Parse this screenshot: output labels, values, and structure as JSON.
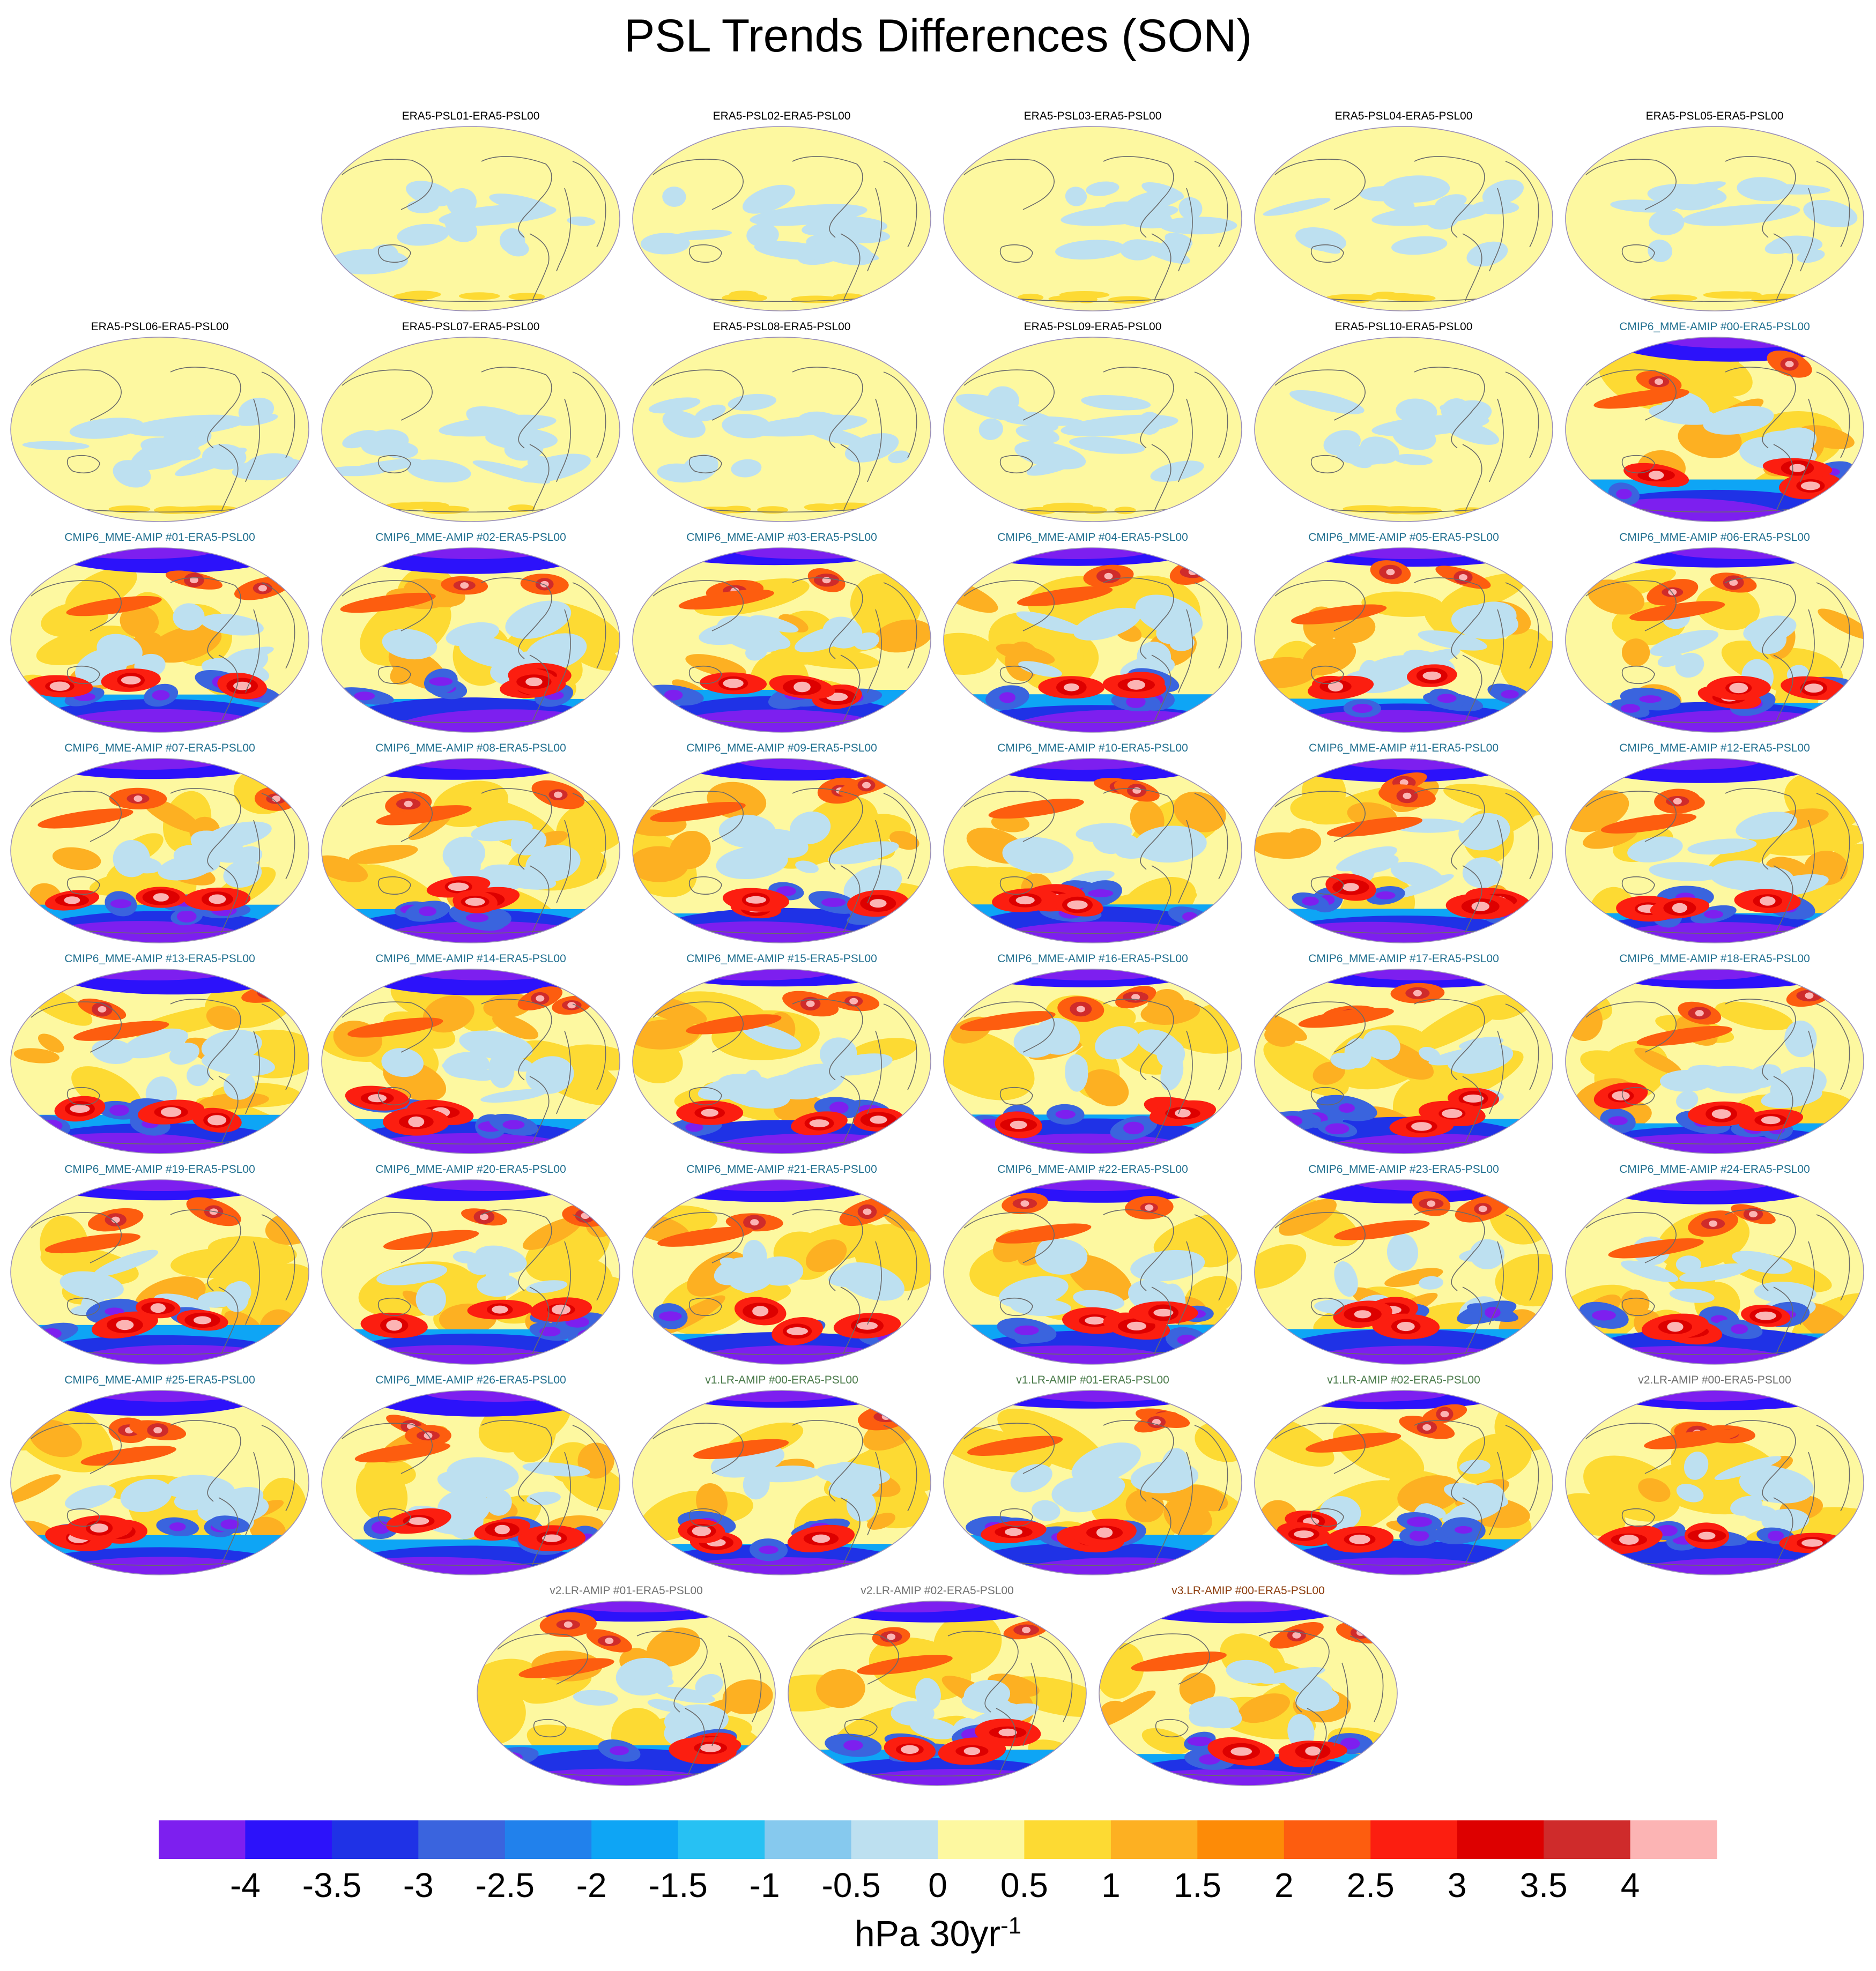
{
  "title": "PSL Trends Differences (SON)",
  "chart_data": {
    "type": "heatmap",
    "projection": "Robinson (global, Pacific-centered)",
    "season": "SON",
    "units_main": "hPa 30yr",
    "units_sup": "-1",
    "colorbar": {
      "ticks": [
        "-4",
        "-3.5",
        "-3",
        "-2.5",
        "-2",
        "-1.5",
        "-1",
        "-0.5",
        "0",
        "0.5",
        "1",
        "1.5",
        "2",
        "2.5",
        "3",
        "3.5",
        "4"
      ],
      "colors": [
        "#7d1fef",
        "#2c12fa",
        "#1f32e6",
        "#3a64de",
        "#2181ec",
        "#0ea5f5",
        "#27c1f3",
        "#86c9ee",
        "#bde0f0",
        "#fdf8a0",
        "#fdda33",
        "#fdb022",
        "#fd8b07",
        "#fd5d0f",
        "#fc1e10",
        "#dd0000",
        "#cf2b2b",
        "#fcb4b4"
      ]
    },
    "panels": [
      {
        "title": "ERA5-PSL01-ERA5-PSL00",
        "group": "era5"
      },
      {
        "title": "ERA5-PSL02-ERA5-PSL00",
        "group": "era5"
      },
      {
        "title": "ERA5-PSL03-ERA5-PSL00",
        "group": "era5"
      },
      {
        "title": "ERA5-PSL04-ERA5-PSL00",
        "group": "era5"
      },
      {
        "title": "ERA5-PSL05-ERA5-PSL00",
        "group": "era5"
      },
      {
        "title": "ERA5-PSL06-ERA5-PSL00",
        "group": "era5"
      },
      {
        "title": "ERA5-PSL07-ERA5-PSL00",
        "group": "era5"
      },
      {
        "title": "ERA5-PSL08-ERA5-PSL00",
        "group": "era5"
      },
      {
        "title": "ERA5-PSL09-ERA5-PSL00",
        "group": "era5"
      },
      {
        "title": "ERA5-PSL10-ERA5-PSL00",
        "group": "era5"
      },
      {
        "title": "CMIP6_MME-AMIP  #00-ERA5-PSL00",
        "group": "cmip6"
      },
      {
        "title": "CMIP6_MME-AMIP  #01-ERA5-PSL00",
        "group": "cmip6"
      },
      {
        "title": "CMIP6_MME-AMIP  #02-ERA5-PSL00",
        "group": "cmip6"
      },
      {
        "title": "CMIP6_MME-AMIP  #03-ERA5-PSL00",
        "group": "cmip6"
      },
      {
        "title": "CMIP6_MME-AMIP  #04-ERA5-PSL00",
        "group": "cmip6"
      },
      {
        "title": "CMIP6_MME-AMIP  #05-ERA5-PSL00",
        "group": "cmip6"
      },
      {
        "title": "CMIP6_MME-AMIP  #06-ERA5-PSL00",
        "group": "cmip6"
      },
      {
        "title": "CMIP6_MME-AMIP  #07-ERA5-PSL00",
        "group": "cmip6"
      },
      {
        "title": "CMIP6_MME-AMIP  #08-ERA5-PSL00",
        "group": "cmip6"
      },
      {
        "title": "CMIP6_MME-AMIP  #09-ERA5-PSL00",
        "group": "cmip6"
      },
      {
        "title": "CMIP6_MME-AMIP  #10-ERA5-PSL00",
        "group": "cmip6"
      },
      {
        "title": "CMIP6_MME-AMIP  #11-ERA5-PSL00",
        "group": "cmip6"
      },
      {
        "title": "CMIP6_MME-AMIP  #12-ERA5-PSL00",
        "group": "cmip6"
      },
      {
        "title": "CMIP6_MME-AMIP  #13-ERA5-PSL00",
        "group": "cmip6"
      },
      {
        "title": "CMIP6_MME-AMIP  #14-ERA5-PSL00",
        "group": "cmip6"
      },
      {
        "title": "CMIP6_MME-AMIP  #15-ERA5-PSL00",
        "group": "cmip6"
      },
      {
        "title": "CMIP6_MME-AMIP  #16-ERA5-PSL00",
        "group": "cmip6"
      },
      {
        "title": "CMIP6_MME-AMIP  #17-ERA5-PSL00",
        "group": "cmip6"
      },
      {
        "title": "CMIP6_MME-AMIP  #18-ERA5-PSL00",
        "group": "cmip6"
      },
      {
        "title": "CMIP6_MME-AMIP  #19-ERA5-PSL00",
        "group": "cmip6"
      },
      {
        "title": "CMIP6_MME-AMIP  #20-ERA5-PSL00",
        "group": "cmip6"
      },
      {
        "title": "CMIP6_MME-AMIP  #21-ERA5-PSL00",
        "group": "cmip6"
      },
      {
        "title": "CMIP6_MME-AMIP  #22-ERA5-PSL00",
        "group": "cmip6"
      },
      {
        "title": "CMIP6_MME-AMIP  #23-ERA5-PSL00",
        "group": "cmip6"
      },
      {
        "title": "CMIP6_MME-AMIP  #24-ERA5-PSL00",
        "group": "cmip6"
      },
      {
        "title": "CMIP6_MME-AMIP  #25-ERA5-PSL00",
        "group": "cmip6"
      },
      {
        "title": "CMIP6_MME-AMIP  #26-ERA5-PSL00",
        "group": "cmip6"
      },
      {
        "title": "v1.LR-AMIP  #00-ERA5-PSL00",
        "group": "v1"
      },
      {
        "title": "v1.LR-AMIP  #01-ERA5-PSL00",
        "group": "v1"
      },
      {
        "title": "v1.LR-AMIP  #02-ERA5-PSL00",
        "group": "v1"
      },
      {
        "title": "v2.LR-AMIP  #00-ERA5-PSL00",
        "group": "v2"
      },
      {
        "title": "v2.LR-AMIP  #01-ERA5-PSL00",
        "group": "v2"
      },
      {
        "title": "v2.LR-AMIP  #02-ERA5-PSL00",
        "group": "v2"
      },
      {
        "title": "v3.LR-AMIP  #00-ERA5-PSL00",
        "group": "v3"
      }
    ],
    "group_title_colors": {
      "era5": "#000000",
      "cmip6": "#1f6f8f",
      "v1": "#4a7a4a",
      "v2": "#707070",
      "v3": "#8b3a0a"
    }
  }
}
